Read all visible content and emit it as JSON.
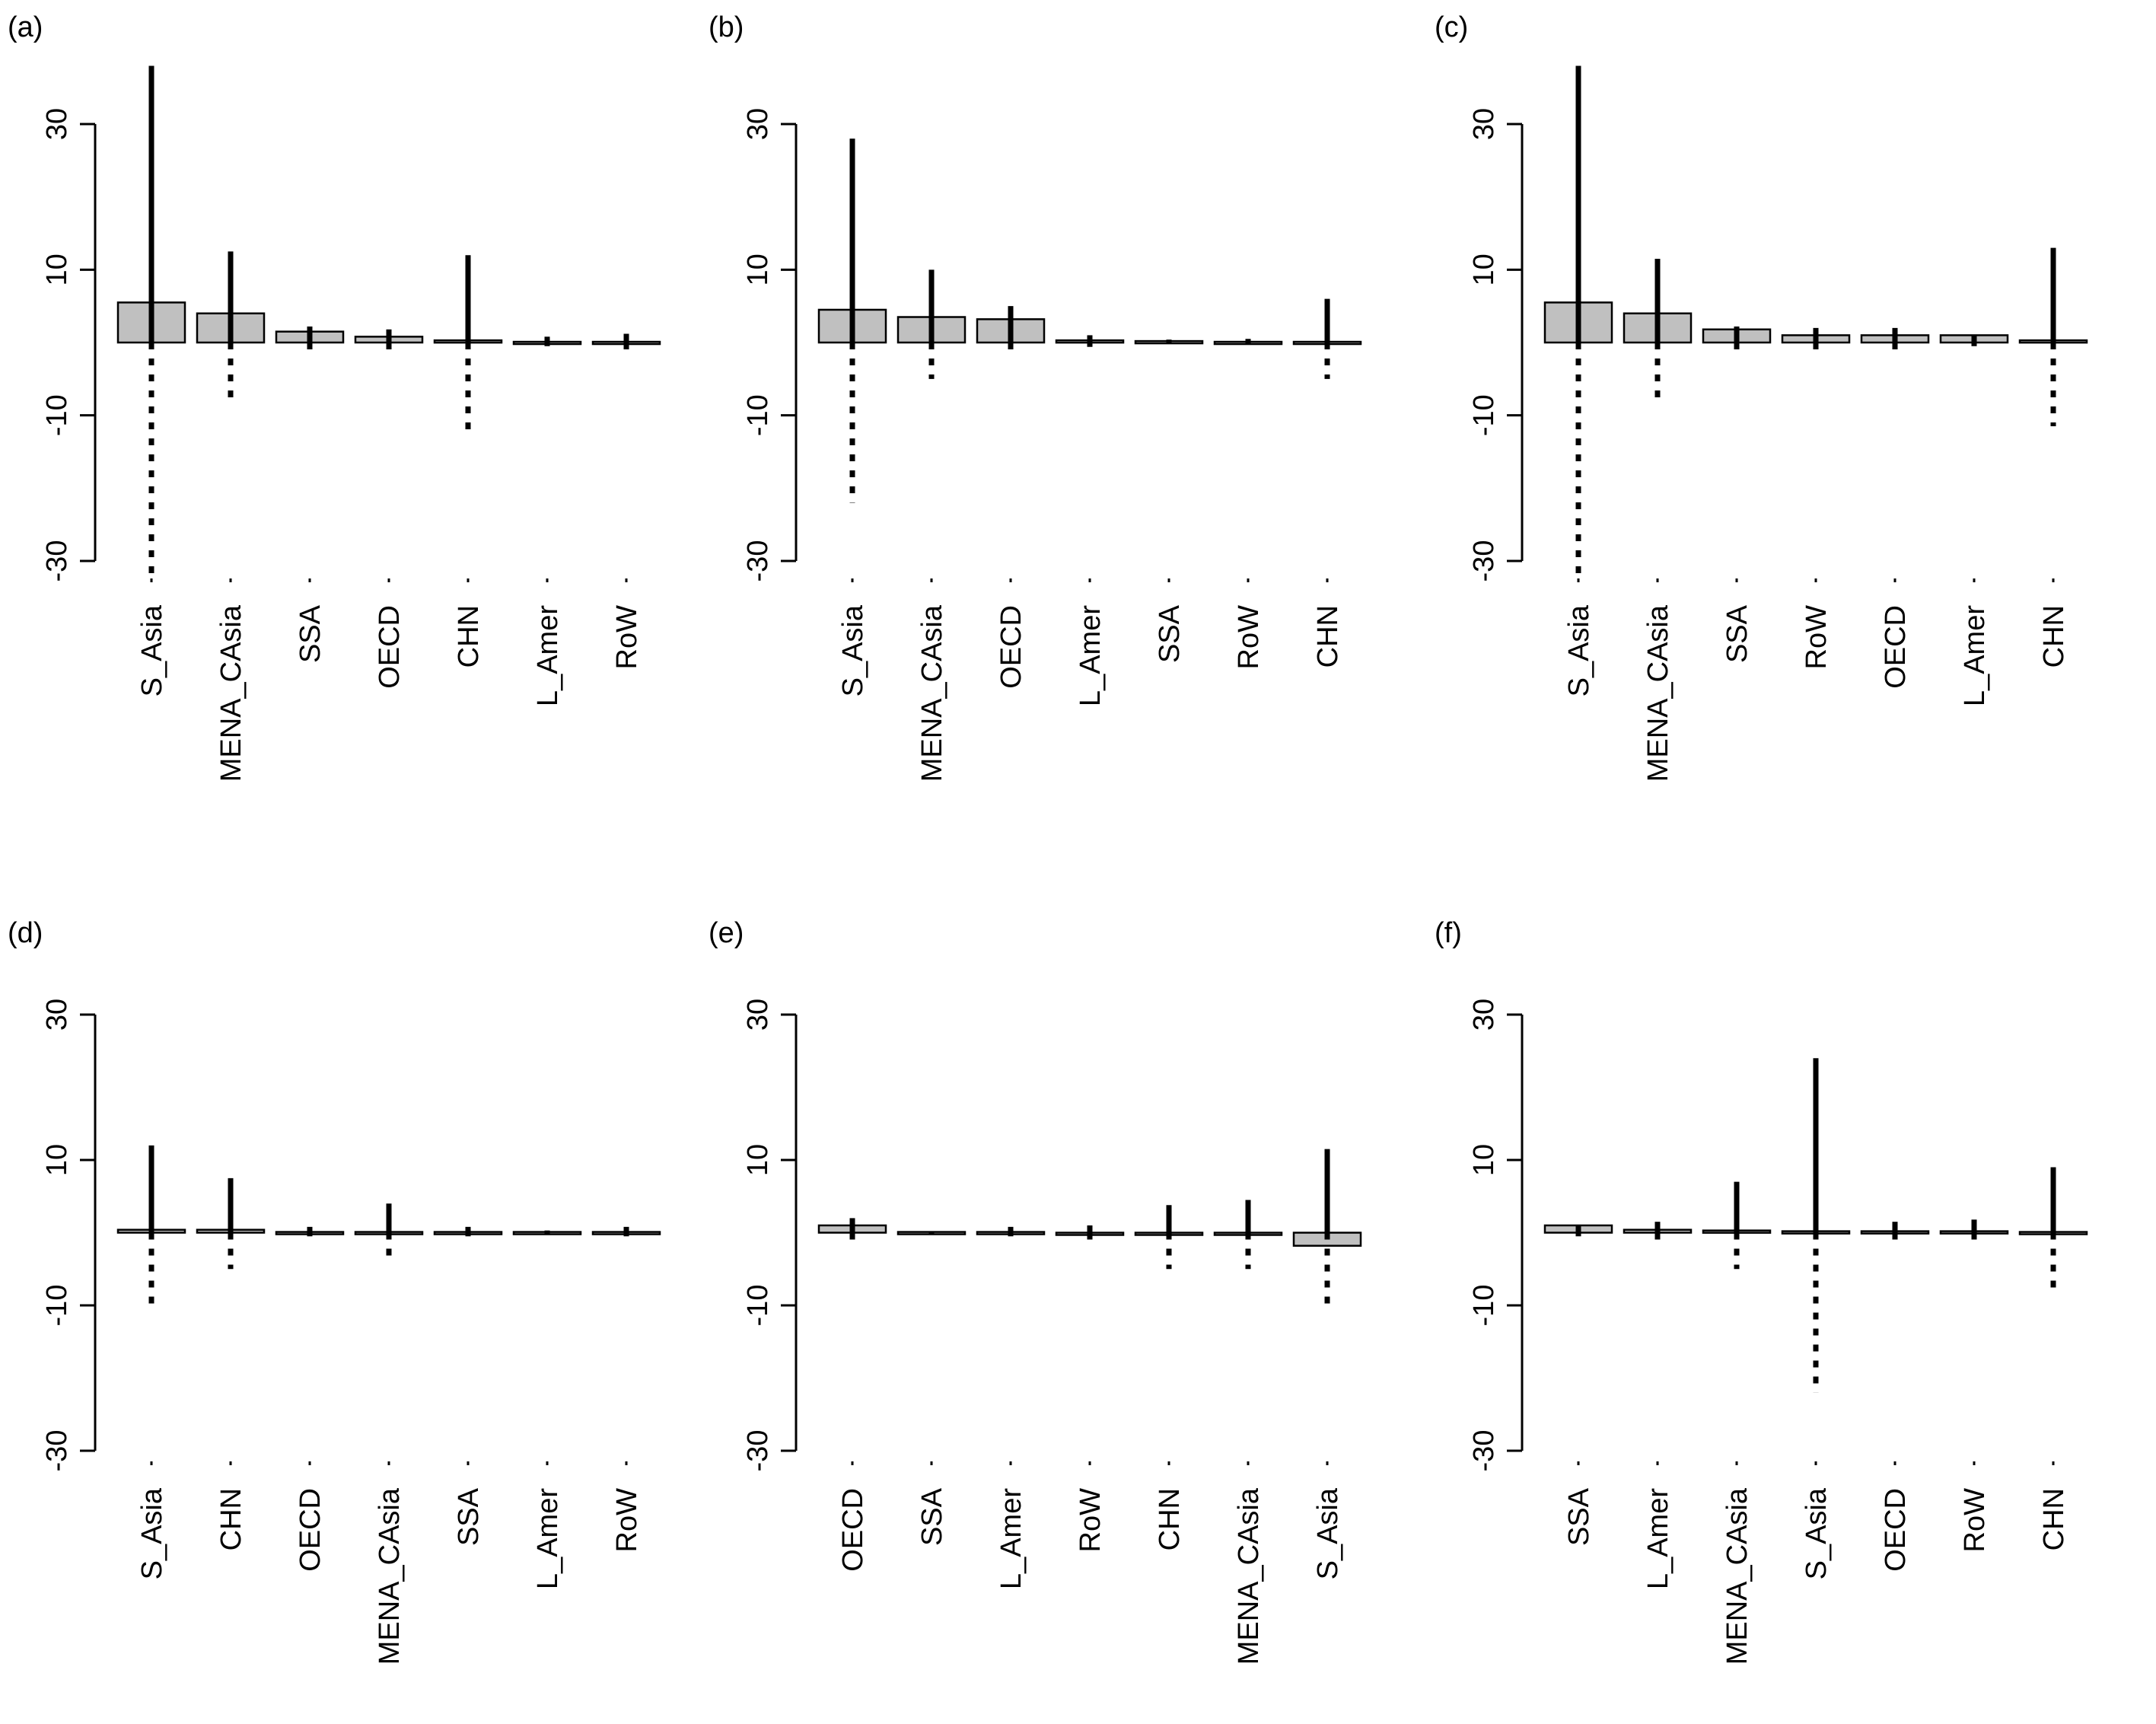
{
  "chart_data": [
    {
      "panel_label": "(a)",
      "type": "bar",
      "ylim": [
        -30,
        30
      ],
      "yticks": [
        -30,
        -10,
        10,
        30
      ],
      "categories": [
        "S_Asia",
        "MENA_CAsia",
        "SSA",
        "OECD",
        "CHN",
        "L_Amer",
        "RoW"
      ],
      "values": [
        5.5,
        4.0,
        1.5,
        0.8,
        0.3,
        0.1,
        0.1
      ],
      "upper": [
        38,
        12.5,
        2.2,
        1.8,
        12.0,
        0.8,
        1.2
      ],
      "lower": [
        -32,
        -8.0,
        -1.0,
        -1.5,
        -12.0,
        -0.5,
        -1.0
      ],
      "fill": "#c0c0c0"
    },
    {
      "panel_label": "(b)",
      "type": "bar",
      "ylim": [
        -30,
        30
      ],
      "yticks": [
        -30,
        -10,
        10,
        30
      ],
      "categories": [
        "S_Asia",
        "MENA_CAsia",
        "OECD",
        "L_Amer",
        "SSA",
        "RoW",
        "CHN"
      ],
      "values": [
        4.5,
        3.5,
        3.2,
        0.3,
        0.2,
        0.1,
        0.1
      ],
      "upper": [
        28,
        10.0,
        5.0,
        1.0,
        0.4,
        0.5,
        6.0
      ],
      "lower": [
        -22,
        -5.0,
        -1.0,
        -0.6,
        -0.2,
        -0.3,
        -5.0
      ],
      "fill": "#c0c0c0"
    },
    {
      "panel_label": "(c)",
      "type": "bar",
      "ylim": [
        -30,
        30
      ],
      "yticks": [
        -30,
        -10,
        10,
        30
      ],
      "categories": [
        "S_Asia",
        "MENA_CAsia",
        "SSA",
        "RoW",
        "OECD",
        "L_Amer",
        "CHN"
      ],
      "values": [
        5.5,
        4.0,
        1.8,
        1.0,
        1.0,
        1.0,
        0.3
      ],
      "upper": [
        38,
        11.5,
        2.2,
        2.0,
        2.0,
        1.0,
        13.0
      ],
      "lower": [
        -32,
        -8.0,
        -1.0,
        -1.0,
        -1.0,
        -0.5,
        -11.5
      ],
      "fill": "#c0c0c0"
    },
    {
      "panel_label": "(d)",
      "type": "bar",
      "ylim": [
        -30,
        30
      ],
      "yticks": [
        -30,
        -10,
        10,
        30
      ],
      "categories": [
        "S_Asia",
        "CHN",
        "OECD",
        "MENA_CAsia",
        "SSA",
        "L_Amer",
        "RoW"
      ],
      "values": [
        0.4,
        0.4,
        0.1,
        0.1,
        0.1,
        0.1,
        0.1
      ],
      "upper": [
        12.0,
        7.5,
        0.8,
        4.0,
        0.8,
        0.3,
        0.8
      ],
      "lower": [
        -11.0,
        -5.0,
        -0.5,
        -4.0,
        -0.5,
        -0.2,
        -0.5
      ],
      "fill": "#c0c0c0"
    },
    {
      "panel_label": "(e)",
      "type": "bar",
      "ylim": [
        -30,
        30
      ],
      "yticks": [
        -30,
        -10,
        10,
        30
      ],
      "categories": [
        "OECD",
        "SSA",
        "L_Amer",
        "RoW",
        "CHN",
        "MENA_CAsia",
        "S_Asia"
      ],
      "values": [
        1.0,
        0.1,
        0.1,
        -0.3,
        -0.3,
        -0.3,
        -1.8
      ],
      "upper": [
        2.0,
        0.2,
        0.8,
        1.0,
        3.8,
        4.5,
        11.5
      ],
      "lower": [
        -1.0,
        -0.1,
        -0.5,
        -1.0,
        -5.0,
        -5.0,
        -11.0
      ],
      "fill": "#c0c0c0"
    },
    {
      "panel_label": "(f)",
      "type": "bar",
      "ylim": [
        -30,
        30
      ],
      "yticks": [
        -30,
        -10,
        10,
        30
      ],
      "categories": [
        "SSA",
        "L_Amer",
        "MENA_CAsia",
        "S_Asia",
        "OECD",
        "RoW",
        "CHN"
      ],
      "values": [
        1.0,
        0.4,
        0.3,
        0.2,
        0.2,
        0.2,
        0.1
      ],
      "upper": [
        1.0,
        1.5,
        7.0,
        24.0,
        1.5,
        1.8,
        9.0
      ],
      "lower": [
        -0.5,
        -1.0,
        -5.0,
        -22.0,
        -1.0,
        -1.0,
        -8.0
      ],
      "fill": "#c0c0c0"
    }
  ]
}
